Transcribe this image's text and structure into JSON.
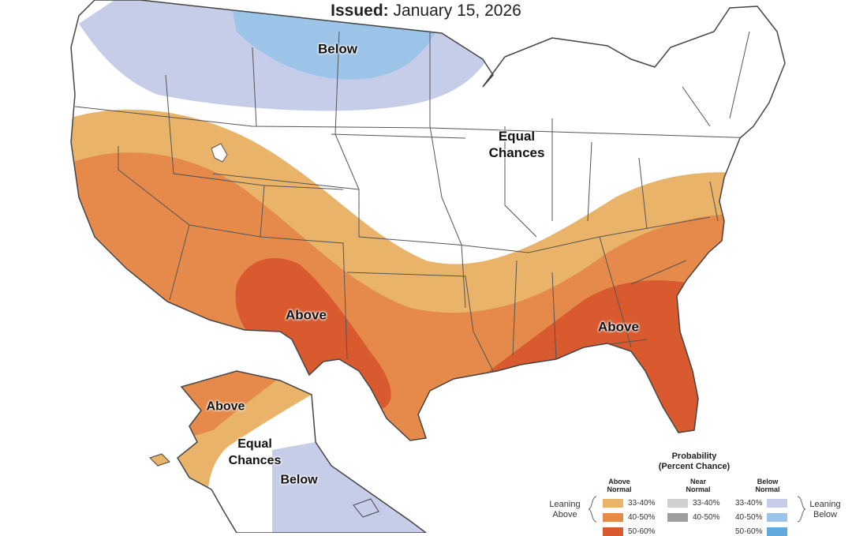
{
  "header": {
    "issued_label": "Issued:",
    "issued_date": "January 15, 2026"
  },
  "regions": {
    "below_north": "Below",
    "equal_chances_conus": [
      "Equal",
      "Chances"
    ],
    "above_southwest": "Above",
    "above_southeast": "Above",
    "above_alaska": "Above",
    "equal_chances_alaska": [
      "Equal",
      "Chances"
    ],
    "below_alaska": "Below"
  },
  "legend": {
    "title": [
      "Probability",
      "(Percent Chance)"
    ],
    "columns": {
      "above": {
        "header": [
          "Above",
          "Normal"
        ],
        "bins": [
          "33-40%",
          "40-50%",
          "50-60%"
        ],
        "colors": [
          "#e9b36a",
          "#e58a4a",
          "#d85a2e"
        ]
      },
      "near": {
        "header": [
          "Near",
          "Normal"
        ],
        "bins": [
          "33-40%",
          "40-50%"
        ],
        "colors": [
          "#cfcfcf",
          "#9e9e9e"
        ]
      },
      "below": {
        "header": [
          "Below",
          "Normal"
        ],
        "bins": [
          "33-40%",
          "40-50%",
          "50-60%"
        ],
        "colors": [
          "#c6cde9",
          "#9cc3e8",
          "#62a9e0"
        ]
      }
    },
    "leaning_above": [
      "Leaning",
      "Above"
    ],
    "leaning_below": [
      "Leaning",
      "Below"
    ]
  },
  "colors": {
    "above_33_40": "#e9b36a",
    "above_40_50": "#e58a4a",
    "above_50_60": "#d85a2e",
    "below_33_40": "#c6cde9",
    "below_40_50": "#9cc3e8",
    "equal_chances": "#ffffff",
    "border": "#555555"
  }
}
